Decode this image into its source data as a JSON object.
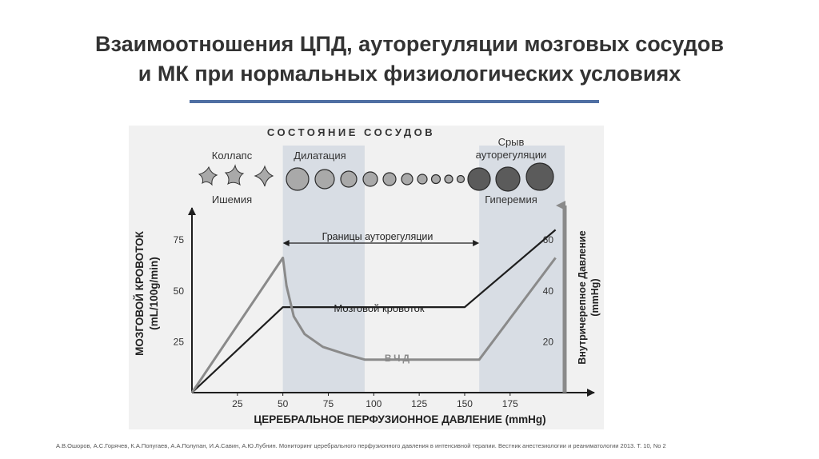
{
  "slide": {
    "title_line1": "Взаимоотношения ЦПД, ауторегуляции мозговых сосудов",
    "title_line2": "и МК при нормальных физиологических условиях",
    "citation": "А.В.Ошоров, А.С.Горячев, К.А.Попугаев, А.А.Полупан, И.А.Савин, А.Ю.Лубнин. Мониторинг церебрального перфузионного давления в интенсивной терапии. Вестник анестезиологии и реаниматологии 2013. Т. 10, No 2"
  },
  "figure": {
    "header": "СОСТОЯНИЕ СОСУДОВ",
    "state_collapse": "Коллапс",
    "state_ischemia": "Ишемия",
    "state_dilation": "Дилатация",
    "state_breakdown_line1": "Срыв",
    "state_breakdown_line2": "ауторегуляции",
    "state_hyperemia": "Гиперемия",
    "autoregulation_label": "Границы ауторегуляции",
    "cbf_curve_label": "Мозговой кровоток",
    "icp_curve_label": "ВЧД",
    "colors": {
      "shade": "#d8dde4",
      "cbf_line": "#1e1e1e",
      "icp_line": "#8a8a8a",
      "vessel_light": "#a9a9a9",
      "vessel_dark": "#5b5b5b"
    }
  },
  "chart_data": {
    "type": "line",
    "xlabel": "ЦЕРЕБРАЛЬНОЕ ПЕРФУЗИОННОЕ ДАВЛЕНИЕ (mmHg)",
    "ylabel_line1": "МОЗГОВОЙ КРОВОТОК",
    "ylabel_line2": "(mL/100g/min)",
    "y2label_line1": "Внутричерепное Давление",
    "y2label_line2": "(mmHg)",
    "x_ticks": [
      25,
      50,
      75,
      100,
      125,
      150,
      175
    ],
    "y_ticks": [
      25,
      50,
      75
    ],
    "y2_ticks": [
      20,
      40,
      60
    ],
    "xlim": [
      0,
      205
    ],
    "ylim": [
      0,
      90
    ],
    "y2lim": [
      0,
      72
    ],
    "shaded_x_ranges": [
      [
        50,
        95
      ],
      [
        158,
        205
      ]
    ],
    "autoregulation_range": [
      50,
      158
    ],
    "series": [
      {
        "name": "Мозговой кровоток",
        "axis": "left",
        "points": [
          [
            0,
            0
          ],
          [
            50,
            42
          ],
          [
            150,
            42
          ],
          [
            200,
            80
          ]
        ]
      },
      {
        "name": "ВЧД",
        "axis": "right",
        "points": [
          [
            0,
            0
          ],
          [
            50,
            53
          ],
          [
            52,
            42
          ],
          [
            56,
            30
          ],
          [
            62,
            23
          ],
          [
            72,
            18
          ],
          [
            85,
            15
          ],
          [
            95,
            13
          ],
          [
            158,
            13
          ],
          [
            200,
            53
          ]
        ]
      }
    ]
  }
}
